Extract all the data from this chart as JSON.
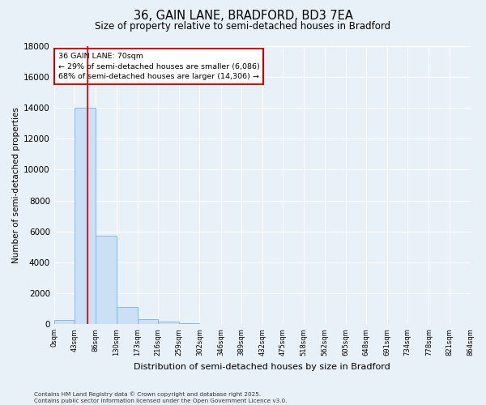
{
  "title_line1": "36, GAIN LANE, BRADFORD, BD3 7EA",
  "title_line2": "Size of property relative to semi-detached houses in Bradford",
  "xlabel": "Distribution of semi-detached houses by size in Bradford",
  "ylabel": "Number of semi-detached properties",
  "annotation_line1": "36 GAIN LANE: 70sqm",
  "annotation_line2": "← 29% of semi-detached houses are smaller (6,086)",
  "annotation_line3": "68% of semi-detached houses are larger (14,306) →",
  "property_size": 70,
  "bin_edges": [
    0,
    43,
    86,
    130,
    173,
    216,
    259,
    302,
    346,
    389,
    432,
    475,
    518,
    562,
    605,
    648,
    691,
    734,
    778,
    821,
    864
  ],
  "bar_heights": [
    300,
    14000,
    5700,
    1100,
    350,
    150,
    50,
    15,
    5,
    2,
    1,
    0,
    0,
    0,
    0,
    0,
    0,
    0,
    0,
    0
  ],
  "bar_color": "#cce0f5",
  "bar_edge_color": "#7fb3d9",
  "red_line_color": "#cc0000",
  "background_color": "#e8f0f8",
  "grid_color": "#ffffff",
  "annotation_box_color": "#ffffff",
  "annotation_box_edge": "#cc0000",
  "ylim": [
    0,
    18000
  ],
  "yticks": [
    0,
    2000,
    4000,
    6000,
    8000,
    10000,
    12000,
    14000,
    16000,
    18000
  ],
  "footer_line1": "Contains HM Land Registry data © Crown copyright and database right 2025.",
  "footer_line2": "Contains public sector information licensed under the Open Government Licence v3.0."
}
